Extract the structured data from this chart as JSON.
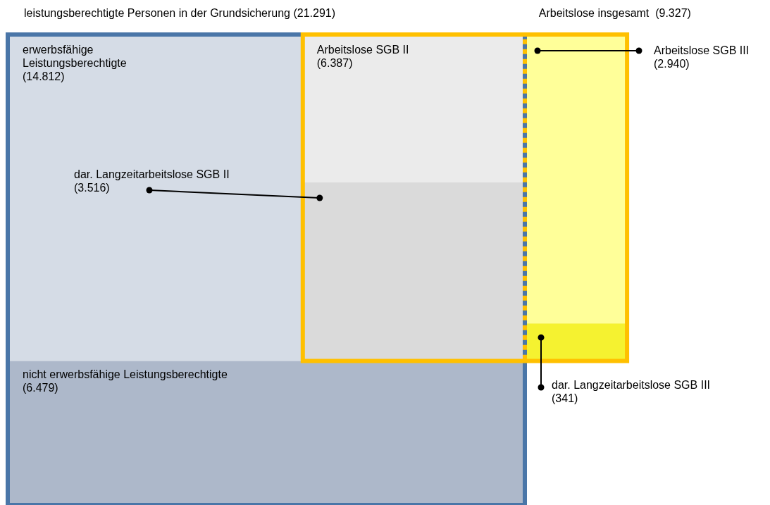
{
  "chart_data": {
    "type": "other",
    "categories": [
      "leistungsberechtigte Personen in der Grundsicherung",
      "erwerbsfähige Leistungsberechtigte",
      "nicht erwerbsfähige Leistungsberechtigte",
      "Arbeitslose SGB II",
      "dar. Langzeitarbeitslose SGB II",
      "Arbeitslose insgesamt ",
      "Arbeitslose SGB III",
      "dar. Langzeitarbeitslose SGB III"
    ],
    "values": [
      21291,
      14812,
      6479,
      6387,
      3516,
      9327,
      2940,
      341
    ],
    "value_labels": [
      "(21.291)",
      "(14.812)",
      "(6.479)",
      "(6.387)",
      "(3.516)",
      "(9.327)",
      "(2.940)",
      "(341)"
    ],
    "colors": [
      "#4a76a8",
      "#d5dce6",
      "#adb8ca",
      "#ebebeb",
      "#dadada",
      "#ffc000",
      "#ffff99",
      "#f5f230"
    ]
  }
}
